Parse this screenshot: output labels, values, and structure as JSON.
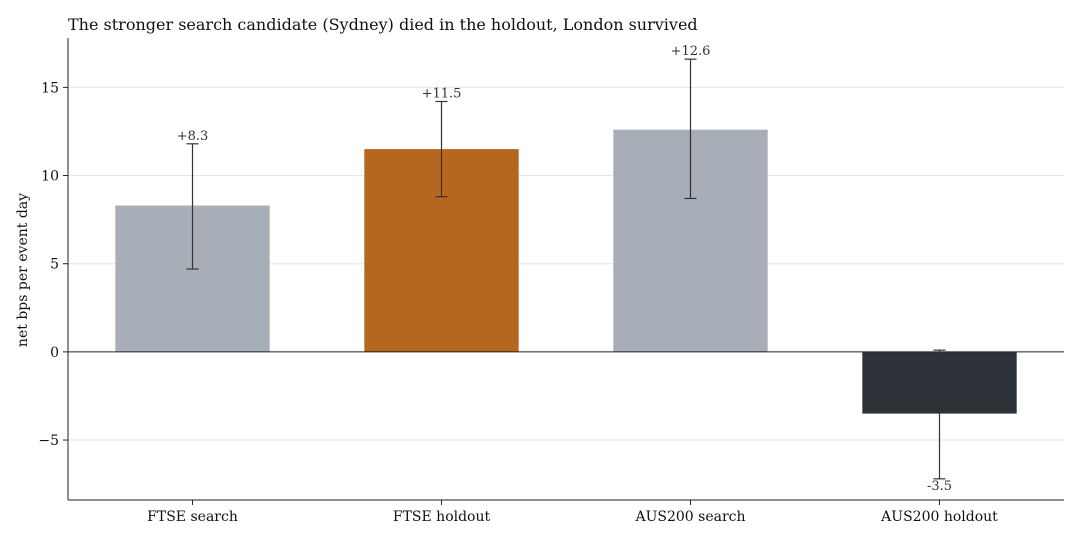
{
  "chart_data": {
    "type": "bar",
    "title": "The stronger search candidate (Sydney) died in the holdout, London survived",
    "xlabel": "",
    "ylabel": "net bps per event day",
    "categories": [
      "FTSE search",
      "FTSE holdout",
      "AUS200 search",
      "AUS200 holdout"
    ],
    "values": [
      8.3,
      11.5,
      12.6,
      -3.5
    ],
    "data_labels": [
      "+8.3",
      "+11.5",
      "+12.6",
      "-3.5"
    ],
    "error_low": [
      4.7,
      8.8,
      8.7,
      -7.2
    ],
    "error_high": [
      11.8,
      14.2,
      16.6,
      0.1
    ],
    "colors": [
      "#a8aeb7",
      "#b5671f",
      "#a8aeb7",
      "#2d3239"
    ],
    "ylim": [
      -8.4,
      17.8
    ],
    "yticks": [
      -5,
      0,
      5,
      10,
      15
    ],
    "ytick_labels": [
      "−5",
      "0",
      "5",
      "10",
      "15"
    ],
    "grid": "horizontal"
  }
}
